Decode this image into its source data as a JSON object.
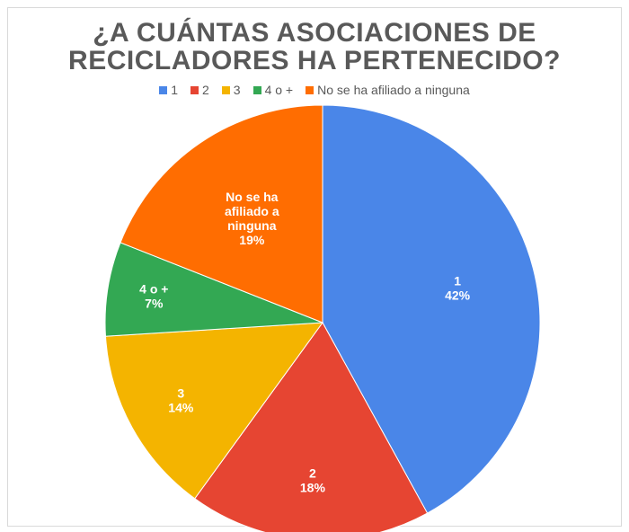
{
  "chart_data": {
    "type": "pie",
    "title_lines": [
      "¿A CUÁNTAS ASOCIACIONES DE",
      "RECICLADORES HA PERTENECIDO?"
    ],
    "legend_position": "top",
    "slices": [
      {
        "name": "1",
        "value": 42,
        "value_label": "42%",
        "label_lines": [
          "1",
          "42%"
        ],
        "color": "#4a86e8"
      },
      {
        "name": "2",
        "value": 18,
        "value_label": "18%",
        "label_lines": [
          "2",
          "18%"
        ],
        "color": "#e64532"
      },
      {
        "name": "3",
        "value": 14,
        "value_label": "14%",
        "label_lines": [
          "3",
          "14%"
        ],
        "color": "#f4b400"
      },
      {
        "name": "4 o +",
        "value": 7,
        "value_label": "7%",
        "label_lines": [
          "4 o +",
          "7%"
        ],
        "color": "#33a853"
      },
      {
        "name": "No se ha afiliado a ninguna",
        "value": 19,
        "value_label": "19%",
        "label_lines": [
          "No se ha",
          "afiliado a",
          "ninguna",
          "19%"
        ],
        "color": "#ff6d01"
      }
    ]
  }
}
